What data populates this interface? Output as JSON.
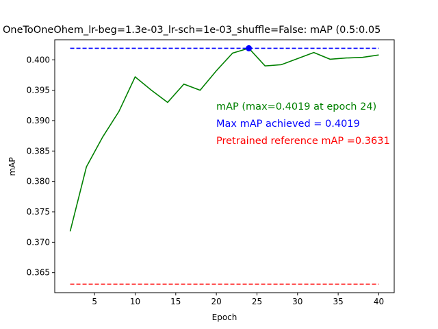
{
  "chart_data": {
    "type": "line",
    "title": "OneToOneOhem_lr-beg=1.3e-03_lr-sch=1e-03_shuffle=False:  mAP (0.5:0.05",
    "xlabel": "Epoch",
    "ylabel": "mAP",
    "xlim": [
      0.1,
      41.9
    ],
    "ylim": [
      0.3617,
      0.4033
    ],
    "xticks": [
      5,
      10,
      15,
      20,
      25,
      30,
      35,
      40
    ],
    "xtick_labels": [
      "5",
      "10",
      "15",
      "20",
      "25",
      "30",
      "35",
      "40"
    ],
    "yticks": [
      0.365,
      0.37,
      0.375,
      0.38,
      0.385,
      0.39,
      0.395,
      0.4
    ],
    "ytick_labels": [
      "0.365",
      "0.370",
      "0.375",
      "0.380",
      "0.385",
      "0.390",
      "0.395",
      "0.400"
    ],
    "grid": false,
    "series": [
      {
        "color": "#008000",
        "style": "solid",
        "x": [
          2,
          4,
          6,
          8,
          10,
          12,
          14,
          16,
          18,
          20,
          22,
          24,
          26,
          28,
          30,
          32,
          34,
          36,
          38,
          40
        ],
        "y": [
          0.3718,
          0.3824,
          0.3873,
          0.3915,
          0.3972,
          0.395,
          0.393,
          0.396,
          0.395,
          0.3982,
          0.4011,
          0.4019,
          0.399,
          0.3992,
          0.4002,
          0.4012,
          0.4001,
          0.4003,
          0.4004,
          0.4008
        ]
      },
      {
        "color": "#0000ff",
        "style": "dashed",
        "x": [
          2,
          40
        ],
        "y": [
          0.4019,
          0.4019
        ]
      },
      {
        "color": "#ff0000",
        "style": "dashed",
        "x": [
          2,
          40
        ],
        "y": [
          0.3631,
          0.3631
        ]
      }
    ],
    "markers": [
      {
        "x": 24,
        "y": 0.4019,
        "color": "#0000ff"
      }
    ],
    "annotations": [
      {
        "text": "mAP (max=0.4019 at epoch 24)",
        "color": "#008000"
      },
      {
        "text": "Max mAP achieved = 0.4019",
        "color": "#0000ff"
      },
      {
        "text": "Pretrained reference mAP =0.3631",
        "color": "#ff0000"
      }
    ]
  }
}
